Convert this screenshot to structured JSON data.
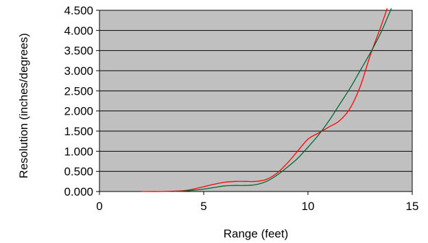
{
  "chart_data": {
    "type": "line",
    "title": "",
    "xlabel": "Range (feet)",
    "ylabel": "Resolution (inches/degrees)",
    "xlim": [
      0,
      15
    ],
    "ylim": [
      0,
      4.5
    ],
    "x_ticks": [
      0,
      5,
      10,
      15
    ],
    "x_tick_labels": [
      "0",
      "5",
      "10",
      "15"
    ],
    "y_ticks": [
      0,
      0.5,
      1.0,
      1.5,
      2.0,
      2.5,
      3.0,
      3.5,
      4.0,
      4.5
    ],
    "y_tick_labels": [
      "0.000",
      "0.500",
      "1.000",
      "1.500",
      "2.000",
      "2.500",
      "3.000",
      "3.500",
      "4.000",
      "4.500"
    ],
    "grid": "horizontal",
    "legend": "none",
    "plot_background": "#c0c0c0",
    "series": [
      {
        "color": "#ff0000",
        "x": [
          2.0,
          3.0,
          4.0,
          4.5,
          5.0,
          5.5,
          6.0,
          6.5,
          7.0,
          7.5,
          8.0,
          8.5,
          9.0,
          9.5,
          10.0,
          10.5,
          11.0,
          11.5,
          12.0,
          12.5,
          13.0,
          13.5,
          13.8
        ],
        "y": [
          0.0,
          0.0,
          0.02,
          0.06,
          0.12,
          0.18,
          0.23,
          0.25,
          0.25,
          0.25,
          0.3,
          0.45,
          0.7,
          1.0,
          1.3,
          1.45,
          1.6,
          1.75,
          2.05,
          2.6,
          3.4,
          4.1,
          4.55
        ]
      },
      {
        "color": "#006633",
        "x": [
          3.5,
          4.0,
          4.5,
          5.0,
          5.5,
          6.0,
          6.5,
          7.0,
          7.5,
          8.0,
          8.5,
          9.0,
          9.5,
          10.0,
          10.5,
          11.0,
          11.5,
          12.0,
          12.5,
          13.0,
          13.5,
          14.0
        ],
        "y": [
          0.0,
          0.01,
          0.03,
          0.06,
          0.1,
          0.14,
          0.15,
          0.15,
          0.17,
          0.25,
          0.4,
          0.6,
          0.82,
          1.1,
          1.4,
          1.75,
          2.15,
          2.55,
          3.0,
          3.45,
          3.95,
          4.55
        ]
      }
    ]
  }
}
